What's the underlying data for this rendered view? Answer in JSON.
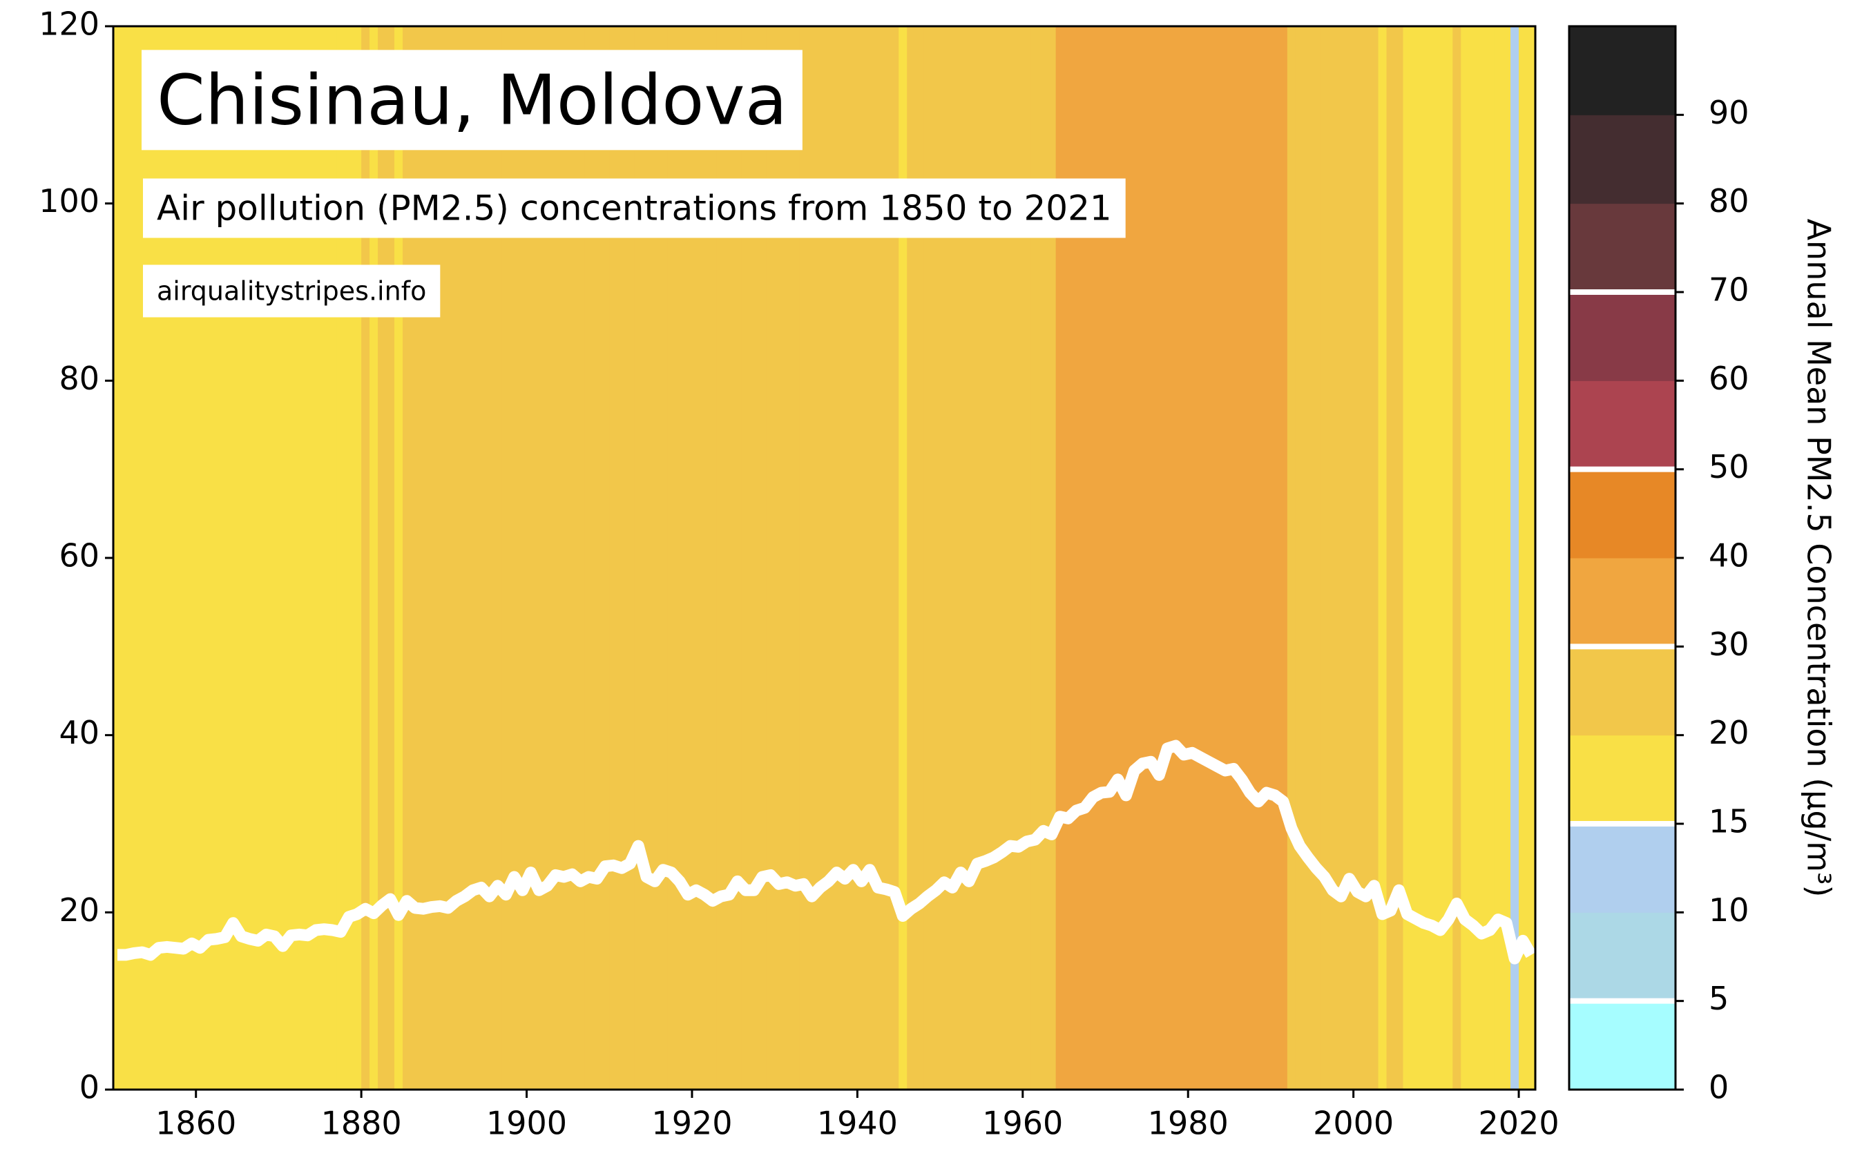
{
  "chart_data": {
    "type": "line",
    "title": "Chisinau, Moldova",
    "subtitle": "Air pollution (PM2.5) concentrations from 1850 to 2021",
    "source": "airqualitystripes.info",
    "x": [
      1850,
      1851,
      1852,
      1853,
      1854,
      1855,
      1856,
      1857,
      1858,
      1859,
      1860,
      1861,
      1862,
      1863,
      1864,
      1865,
      1866,
      1867,
      1868,
      1869,
      1870,
      1871,
      1872,
      1873,
      1874,
      1875,
      1876,
      1877,
      1878,
      1879,
      1880,
      1881,
      1882,
      1883,
      1884,
      1885,
      1886,
      1887,
      1888,
      1889,
      1890,
      1891,
      1892,
      1893,
      1894,
      1895,
      1896,
      1897,
      1898,
      1899,
      1900,
      1901,
      1902,
      1903,
      1904,
      1905,
      1906,
      1907,
      1908,
      1909,
      1910,
      1911,
      1912,
      1913,
      1914,
      1915,
      1916,
      1917,
      1918,
      1919,
      1920,
      1921,
      1922,
      1923,
      1924,
      1925,
      1926,
      1927,
      1928,
      1929,
      1930,
      1931,
      1932,
      1933,
      1934,
      1935,
      1936,
      1937,
      1938,
      1939,
      1940,
      1941,
      1942,
      1943,
      1944,
      1945,
      1946,
      1947,
      1948,
      1949,
      1950,
      1951,
      1952,
      1953,
      1954,
      1955,
      1956,
      1957,
      1958,
      1959,
      1960,
      1961,
      1962,
      1963,
      1964,
      1965,
      1966,
      1967,
      1968,
      1969,
      1970,
      1971,
      1972,
      1973,
      1974,
      1975,
      1976,
      1977,
      1978,
      1979,
      1980,
      1981,
      1982,
      1983,
      1984,
      1985,
      1986,
      1987,
      1988,
      1989,
      1990,
      1991,
      1992,
      1993,
      1994,
      1995,
      1996,
      1997,
      1998,
      1999,
      2000,
      2001,
      2002,
      2003,
      2004,
      2005,
      2006,
      2007,
      2008,
      2009,
      2010,
      2011,
      2012,
      2013,
      2014,
      2015,
      2016,
      2017,
      2018,
      2019,
      2020,
      2021
    ],
    "series": [
      {
        "color": "#ffffff",
        "values": [
          15.2,
          15.2,
          15.4,
          15.5,
          15.2,
          16.0,
          16.1,
          16.0,
          15.9,
          16.5,
          16.0,
          16.9,
          17.0,
          17.2,
          18.8,
          17.3,
          17.0,
          16.8,
          17.5,
          17.3,
          16.2,
          17.4,
          17.5,
          17.4,
          18.0,
          18.1,
          18.0,
          17.8,
          19.5,
          19.8,
          20.4,
          19.9,
          20.8,
          21.5,
          19.7,
          21.3,
          20.5,
          20.4,
          20.6,
          20.7,
          20.5,
          21.3,
          21.8,
          22.5,
          22.8,
          21.8,
          23.0,
          22.0,
          24.0,
          22.5,
          24.5,
          22.5,
          23.0,
          24.2,
          24.0,
          24.3,
          23.5,
          24.0,
          23.8,
          25.2,
          25.3,
          25.0,
          25.5,
          27.5,
          24.0,
          23.5,
          24.8,
          24.5,
          23.5,
          22.0,
          22.5,
          22.0,
          21.3,
          21.8,
          22.0,
          23.5,
          22.5,
          22.5,
          24.0,
          24.2,
          23.2,
          23.4,
          23.0,
          23.2,
          21.8,
          22.8,
          23.5,
          24.5,
          23.8,
          24.8,
          23.5,
          24.8,
          22.8,
          22.6,
          22.3,
          19.6,
          20.4,
          21.0,
          21.8,
          22.5,
          23.4,
          22.8,
          24.5,
          23.5,
          25.5,
          25.8,
          26.2,
          26.8,
          27.5,
          27.4,
          28.0,
          28.2,
          29.2,
          28.8,
          30.8,
          30.6,
          31.5,
          31.8,
          33.0,
          33.5,
          33.6,
          35.0,
          33.2,
          36.0,
          36.8,
          37.0,
          35.5,
          38.5,
          38.8,
          37.8,
          38.0,
          37.5,
          37.0,
          36.5,
          36.0,
          36.2,
          35.0,
          33.5,
          32.5,
          33.5,
          33.2,
          32.5,
          29.5,
          27.5,
          26.2,
          25.0,
          24.0,
          22.5,
          21.8,
          23.8,
          22.3,
          21.8,
          23.0,
          19.8,
          20.2,
          22.5,
          19.8,
          19.3,
          18.8,
          18.5,
          18.0,
          19.2,
          21.0,
          19.2,
          18.5,
          17.6,
          18.0,
          19.2,
          18.8,
          14.8,
          16.8,
          15.2
        ]
      }
    ],
    "xlim": [
      1850,
      2022
    ],
    "xticks": [
      1860,
      1880,
      1900,
      1920,
      1940,
      1960,
      1980,
      2000,
      2020
    ],
    "ylim": [
      0,
      120
    ],
    "yticks": [
      0,
      20,
      40,
      60,
      80,
      100,
      120
    ],
    "colorbar": {
      "label": "Annual Mean PM2.5 Concentration (µg/m³)",
      "bounds": [
        0,
        5,
        10,
        15,
        20,
        30,
        40,
        50,
        60,
        70,
        80,
        90,
        100
      ],
      "colors": [
        "#a6fdff",
        "#acd8e6",
        "#b0cfee",
        "#f9e046",
        "#f2c74a",
        "#f0a640",
        "#e78826",
        "#ac4450",
        "#883a47",
        "#68393c",
        "#442d30",
        "#222222"
      ],
      "ticks": [
        0,
        5,
        10,
        15,
        20,
        30,
        40,
        50,
        60,
        70,
        80,
        90
      ],
      "guidelines": [
        5,
        15,
        30,
        50,
        70
      ]
    }
  }
}
